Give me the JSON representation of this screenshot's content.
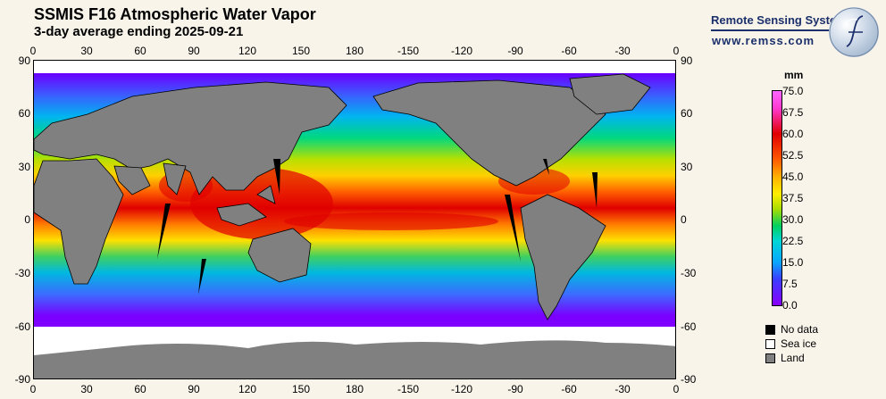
{
  "header": {
    "title": "SSMIS F16 Atmospheric Water Vapor",
    "subtitle": "3-day average ending 2025-09-21"
  },
  "org": {
    "name": "Remote Sensing Systems",
    "url": "www.remss.com"
  },
  "axes": {
    "lon_ticks": [
      "0",
      "30",
      "60",
      "90",
      "120",
      "150",
      "180",
      "-150",
      "-120",
      "-90",
      "-60",
      "-30",
      "0"
    ],
    "lat_ticks": [
      "90",
      "60",
      "30",
      "0",
      "-30",
      "-60",
      "-90"
    ]
  },
  "colorbar": {
    "unit": "mm",
    "labels": [
      "75.0",
      "67.5",
      "60.0",
      "52.5",
      "45.0",
      "37.5",
      "30.0",
      "22.5",
      "15.0",
      "7.5",
      "0.0"
    ]
  },
  "legend": [
    {
      "label": "No data",
      "color": "#000000"
    },
    {
      "label": "Sea ice",
      "color": "#ffffff"
    },
    {
      "label": "Land",
      "color": "#808080"
    }
  ],
  "colors": {
    "ocean_high": "#e00000",
    "ocean_mid": "#ffee00",
    "ocean_low": "#0aa6ff",
    "land": "#808080",
    "sea_ice": "#ffffff",
    "no_data": "#000000",
    "background": "#f8f4ea"
  }
}
